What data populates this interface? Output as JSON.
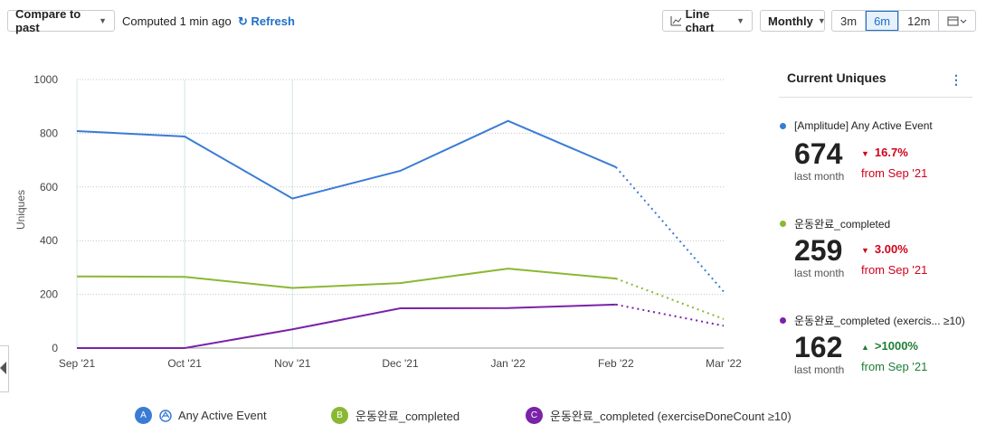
{
  "toolbar": {
    "compare_label": "Compare to past",
    "computed_text": "Computed 1 min ago",
    "refresh_label": "Refresh",
    "chart_type_label": "Line chart",
    "interval_label": "Monthly",
    "ranges": [
      "3m",
      "6m",
      "12m"
    ],
    "active_range": "6m"
  },
  "panel": {
    "title": "Current Uniques",
    "metrics": [
      {
        "name": "[Amplitude] Any Active Event",
        "value": "674",
        "sub": "last month",
        "change": "16.7%",
        "direction": "down",
        "from": "from Sep '21",
        "color": "#3a7bd5",
        "change_color": "#d0021b"
      },
      {
        "name": "운동완료_completed",
        "value": "259",
        "sub": "last month",
        "change": "3.00%",
        "direction": "down",
        "from": "from Sep '21",
        "color": "#8ab833",
        "change_color": "#d0021b"
      },
      {
        "name": "운동완료_completed (exercis...   ≥10)",
        "value": "162",
        "sub": "last month",
        "change": ">1000%",
        "direction": "up",
        "from": "from Sep '21",
        "color": "#7a22a8",
        "change_color": "#1e7e34"
      }
    ]
  },
  "legend": [
    {
      "badge": "A",
      "label": "Any Active Event",
      "color": "#3a7bd5"
    },
    {
      "badge": "B",
      "label": "운동완료_completed",
      "color": "#8ab833"
    },
    {
      "badge": "C",
      "label": "운동완료_completed (exerciseDoneCount ≥10)",
      "color": "#7a22a8"
    }
  ],
  "chart_data": {
    "type": "line",
    "ylabel": "Uniques",
    "xlabel": "",
    "ylim": [
      0,
      1000
    ],
    "yticks": [
      0,
      200,
      400,
      600,
      800,
      1000
    ],
    "categories": [
      "Sep '21",
      "Oct '21",
      "Nov '21",
      "Dec '21",
      "Jan '22",
      "Feb '22",
      "Mar '22"
    ],
    "incomplete_from_index": 5,
    "grid": true,
    "series": [
      {
        "name": "[Amplitude] Any Active Event",
        "color": "#3a7bd5",
        "values": [
          808,
          788,
          557,
          660,
          846,
          674,
          210
        ]
      },
      {
        "name": "운동완료_completed",
        "color": "#8ab833",
        "values": [
          267,
          265,
          224,
          242,
          296,
          259,
          108
        ]
      },
      {
        "name": "운동완료_completed (exerciseDoneCount ≥10)",
        "color": "#7a22a8",
        "values": [
          0,
          0,
          70,
          148,
          149,
          162,
          83
        ]
      }
    ]
  }
}
